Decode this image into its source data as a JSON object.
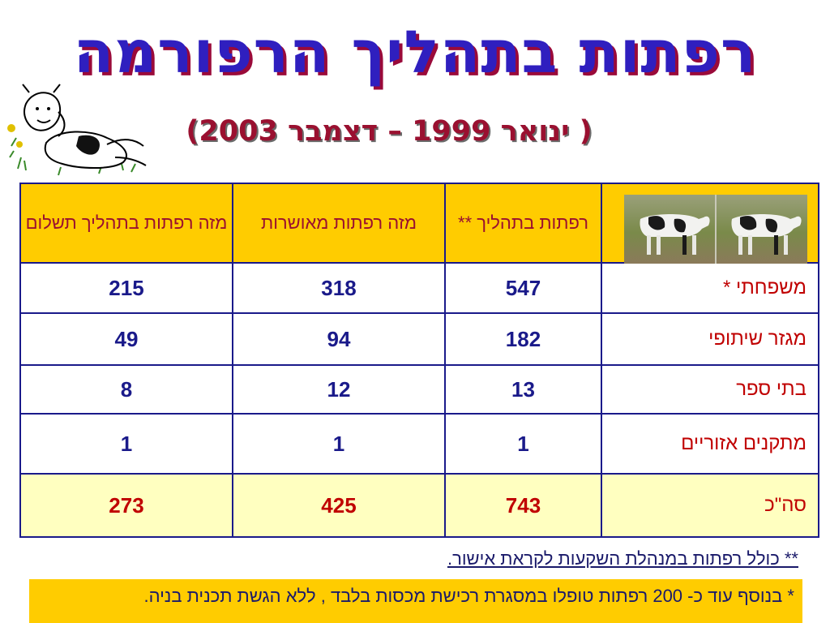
{
  "title": "רפתות בתהליך הרפורמה",
  "subtitle": "( ינואר 1999 – דצמבר 2003)",
  "table": {
    "headers": {
      "col1": "רפתות בתהליך **",
      "col2": "מזה רפתות מאושרות",
      "col3": "מזה רפתות בתהליך תשלום"
    },
    "rows": [
      {
        "label": "משפחתי *",
        "in_process": "547",
        "approved": "318",
        "in_payment": "215"
      },
      {
        "label": "מגזר שיתופי",
        "in_process": "182",
        "approved": "94",
        "in_payment": "49"
      },
      {
        "label": "בתי ספר",
        "in_process": "13",
        "approved": "12",
        "in_payment": "8"
      },
      {
        "label": "מתקנים אזוריים",
        "in_process": "1",
        "approved": "1",
        "in_payment": "1"
      }
    ],
    "total": {
      "label": "סה\"כ",
      "in_process": "743",
      "approved": "425",
      "in_payment": "273"
    }
  },
  "footnotes": {
    "note1": "** כולל רפתות במנהלת השקעות לקראת אישור.",
    "note2": "* בנוסף עוד כ- 200 רפתות טופלו במסגרת רכישת מכסות בלבד , ללא הגשת תכנית בניה."
  },
  "colors": {
    "title": "#2f1fbf",
    "title_shadow": "#9a0a3a",
    "subtitle": "#9a1030",
    "header_bg": "#ffcc00",
    "total_bg": "#ffffc0",
    "border": "#1a1a8a"
  },
  "images": {
    "cartoon": "cartoon-cow-lying-on-grass",
    "photo": "two-dairy-cows-photo"
  }
}
